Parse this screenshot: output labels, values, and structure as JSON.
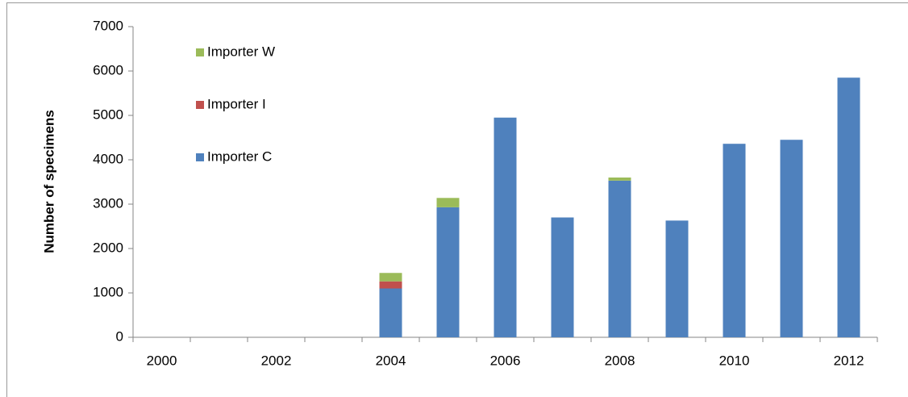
{
  "chart_data": {
    "type": "bar",
    "stacked": true,
    "y_label": "Number of specimens",
    "categories": [
      "2000",
      null,
      "2002",
      null,
      "2004",
      null,
      "2006",
      null,
      "2008",
      null,
      "2010",
      null,
      "2012"
    ],
    "series": [
      {
        "name": "Importer C",
        "color": "#4f81bd",
        "values": [
          0,
          0,
          0,
          0,
          1100,
          2930,
          4950,
          2700,
          3530,
          2630,
          4360,
          4450,
          5850
        ]
      },
      {
        "name": "Importer I",
        "color": "#c0504d",
        "values": [
          0,
          0,
          0,
          0,
          160,
          0,
          0,
          0,
          0,
          0,
          0,
          0,
          0
        ]
      },
      {
        "name": "Importer W",
        "color": "#9bbb59",
        "values": [
          0,
          0,
          0,
          0,
          190,
          210,
          0,
          0,
          70,
          0,
          0,
          0,
          0
        ]
      }
    ],
    "ylim": [
      0,
      7000
    ],
    "yticks": [
      0,
      1000,
      2000,
      3000,
      4000,
      5000,
      6000,
      7000
    ],
    "grid": false,
    "legend": "upper left"
  }
}
